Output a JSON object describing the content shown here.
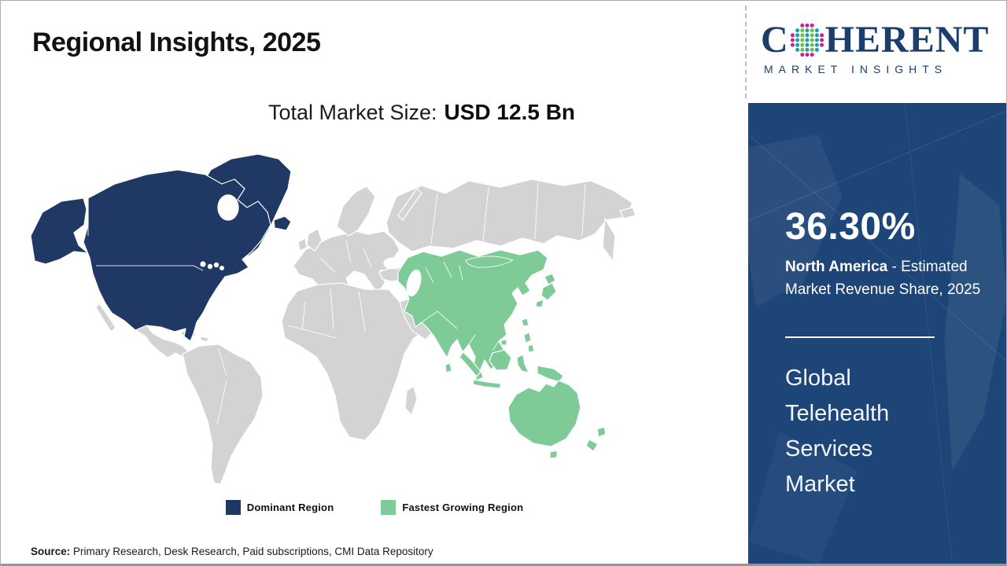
{
  "page": {
    "title": "Regional Insights, 2025"
  },
  "subtitle": {
    "label": "Total Market Size:",
    "value": "USD 12.5 Bn"
  },
  "logo": {
    "letter_c": "C",
    "letters_rest": "HERENT",
    "tagline": "MARKET INSIGHTS"
  },
  "brand": {
    "navy": "#1b3e6d",
    "teal": "#17a2ab",
    "green": "#6fbf4c",
    "pink": "#c9238f"
  },
  "map": {
    "colors": {
      "dominant": "#1f3864",
      "fastest": "#7ecb98",
      "other": "#d3d3d3"
    }
  },
  "legend": {
    "items": [
      {
        "label": "Dominant Region",
        "color": "#1f3864"
      },
      {
        "label": "Fastest Growing Region",
        "color": "#7ecb98"
      }
    ]
  },
  "sidebar": {
    "bg": "#1d4577",
    "share_value": "36.30%",
    "share_region": "North America",
    "share_desc": " - Estimated Market Revenue Share, 2025",
    "market_name": "Global Telehealth Services Market"
  },
  "source": {
    "label": "Source:",
    "text": " Primary Research, Desk Research, Paid subscriptions, CMI Data Repository"
  },
  "chart_data": {
    "type": "heatmap",
    "subtype": "choropleth-world-map",
    "title": "Regional Insights, 2025",
    "total_market_size": "USD 12.5 Bn",
    "market": "Global Telehealth Services Market",
    "regions": [
      {
        "name": "North America",
        "classification": "Dominant Region",
        "estimated_market_revenue_share_2025": "36.30%",
        "color": "#1f3864"
      },
      {
        "name": "Asia Pacific",
        "classification": "Fastest Growing Region",
        "color": "#7ecb98"
      },
      {
        "name": "Rest of World",
        "classification": "Not highlighted",
        "color": "#d3d3d3"
      }
    ],
    "legend_entries": [
      "Dominant Region",
      "Fastest Growing Region"
    ],
    "legend_position": "bottom-center",
    "source": "Primary Research, Desk Research, Paid subscriptions, CMI Data Repository"
  }
}
